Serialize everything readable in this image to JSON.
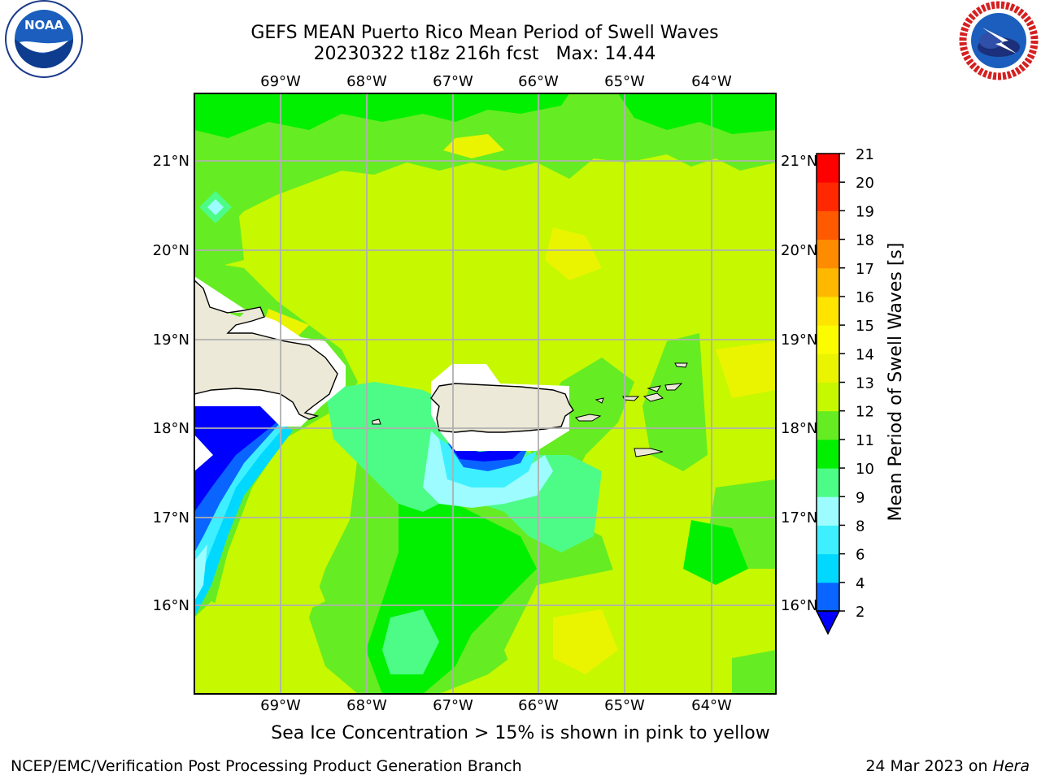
{
  "header": {
    "title": "GEFS MEAN Puerto Rico Mean Period of Swell Waves",
    "subtitle_run": "20230322 t18z 216h fcst",
    "subtitle_max": "Max: 14.44"
  },
  "logos": {
    "left": {
      "name": "noaa-logo",
      "text": "NOAA"
    },
    "right": {
      "name": "nws-logo",
      "text": "NATIONAL WEATHER SERVICE"
    }
  },
  "map": {
    "lon_labels": [
      "69°W",
      "68°W",
      "67°W",
      "66°W",
      "65°W",
      "64°W"
    ],
    "lat_labels": [
      "21°N",
      "20°N",
      "19°N",
      "18°N",
      "17°N",
      "16°N"
    ],
    "right_lat_labels": [
      "21°N",
      "20°N",
      "19°N",
      "18°N",
      "17°N",
      "16°N"
    ]
  },
  "colorbar": {
    "label": "Mean Period of Swell Waves [s]",
    "ticks": [
      "2",
      "4",
      "6",
      "8",
      "9",
      "10",
      "11",
      "12",
      "13",
      "14",
      "15",
      "16",
      "17",
      "18",
      "19",
      "20",
      "21"
    ],
    "colors": [
      "#0000ff",
      "#0a64ff",
      "#00d8ff",
      "#3ef0ff",
      "#9cfcff",
      "#4cfc86",
      "#00f000",
      "#66ec22",
      "#c6f800",
      "#eaf400",
      "#fcfc00",
      "#ffe400",
      "#ffb800",
      "#ff8c00",
      "#ff5a00",
      "#ff2800",
      "#ff0000"
    ]
  },
  "footer": {
    "note": "Sea Ice Concentration > 15% is shown in pink to yellow",
    "left": "NCEP/EMC/Verification Post Processing Product Generation Branch",
    "right_date": "24 Mar 2023 on",
    "right_host": "Hera"
  }
}
